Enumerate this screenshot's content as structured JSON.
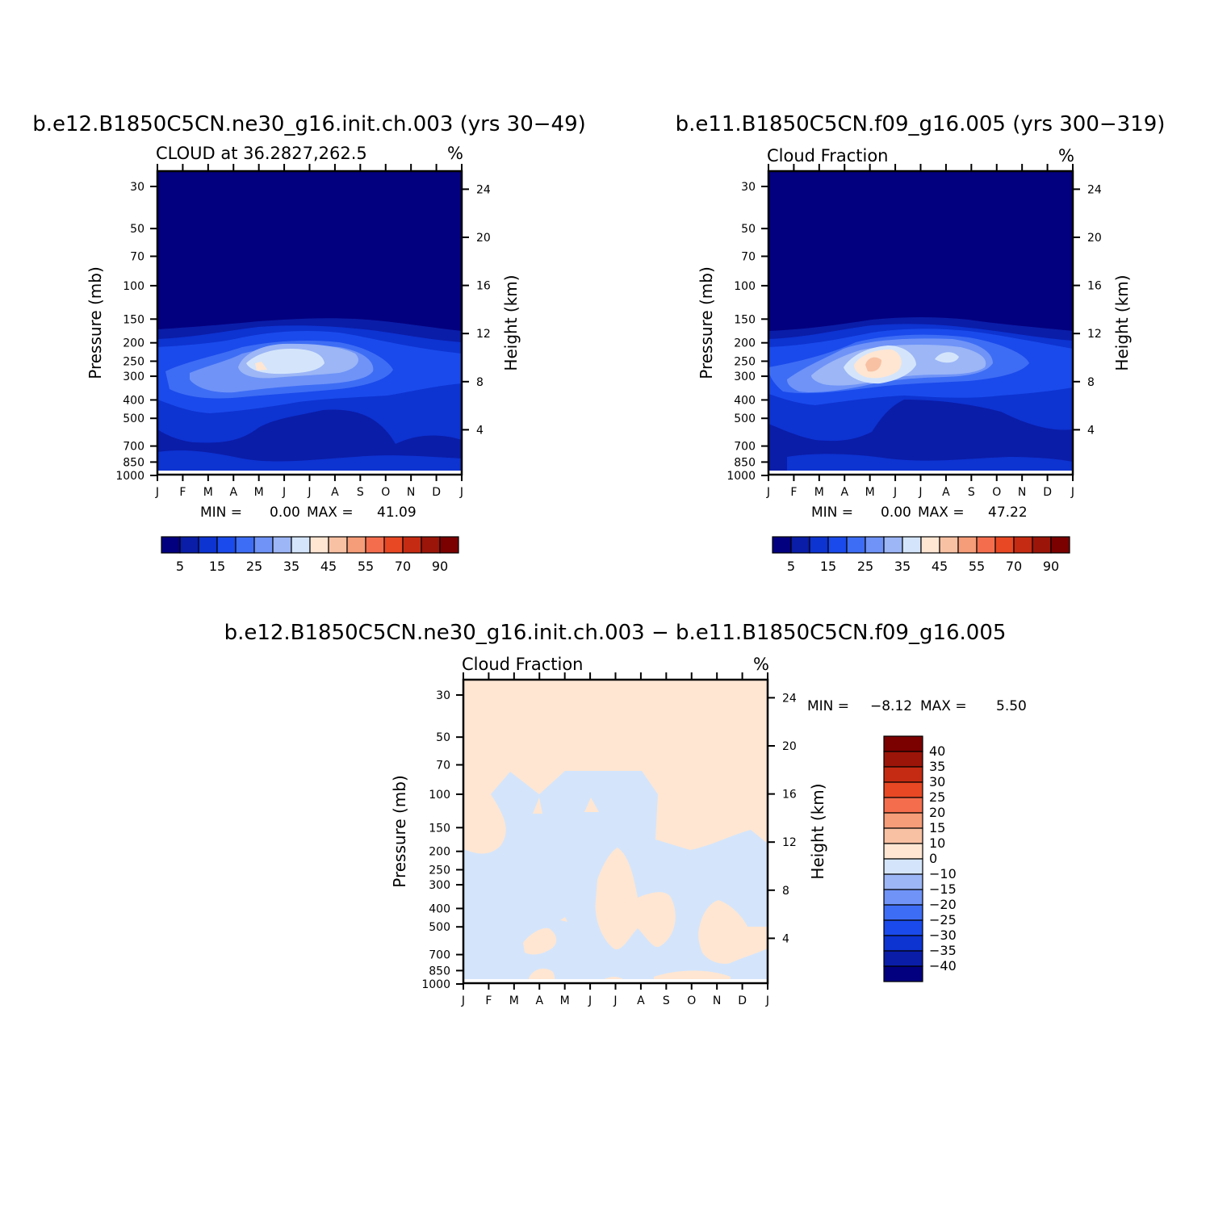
{
  "colors": {
    "abs": [
      "#03007f",
      "#0a1da8",
      "#0d33d1",
      "#1a4aeb",
      "#3e6df5",
      "#6f93f7",
      "#9cb6f6",
      "#d4e5fb",
      "#fee6d3",
      "#f8c1a3",
      "#f59c78",
      "#f46e4e",
      "#e84823",
      "#c52b12",
      "#9b1509",
      "#7b0000"
    ],
    "diff": [
      "#03007f",
      "#0a1da8",
      "#0d33d1",
      "#1a4aeb",
      "#3e6df5",
      "#6f93f7",
      "#9cb6f6",
      "#d4e5fb",
      "#fee6d3",
      "#f8c1a3",
      "#f59c78",
      "#f46e4e",
      "#e84823",
      "#c52b12",
      "#9b1509",
      "#7b0000"
    ]
  },
  "chart_data": [
    {
      "type": "heatmap",
      "panel": "top-left",
      "title": "b.e12.B1850C5CN.ne30_g16.init.ch.003 (yrs 30−49)",
      "subtitle": "CLOUD at 36.2827,262.5",
      "units": "%",
      "ylabel": "Pressure (mb)",
      "ylabel_right": "Height (km)",
      "x_ticks": [
        "J",
        "F",
        "M",
        "A",
        "M",
        "J",
        "J",
        "A",
        "S",
        "O",
        "N",
        "D",
        "J"
      ],
      "y_ticks": [
        30,
        50,
        70,
        100,
        150,
        200,
        250,
        300,
        400,
        500,
        700,
        850,
        1000
      ],
      "y_ticks_right": [
        24,
        20,
        16,
        12,
        8,
        4
      ],
      "y_scale": "log",
      "stats": {
        "min_label": "MIN =",
        "min": "0.00",
        "max_label": "MAX =",
        "max": "41.09"
      },
      "colorbar_labels": [
        "5",
        "15",
        "25",
        "35",
        "45",
        "55",
        "70",
        "90"
      ],
      "peak": {
        "month": "May–Jul",
        "pressure_mb": 260,
        "value": 41.09
      }
    },
    {
      "type": "heatmap",
      "panel": "top-right",
      "title": "b.e11.B1850C5CN.f09_g16.005 (yrs 300−319)",
      "subtitle": "Cloud Fraction",
      "units": "%",
      "ylabel": "Pressure (mb)",
      "ylabel_right": "Height (km)",
      "x_ticks": [
        "J",
        "F",
        "M",
        "A",
        "M",
        "J",
        "J",
        "A",
        "S",
        "O",
        "N",
        "D",
        "J"
      ],
      "y_ticks": [
        30,
        50,
        70,
        100,
        150,
        200,
        250,
        300,
        400,
        500,
        700,
        850,
        1000
      ],
      "y_ticks_right": [
        24,
        20,
        16,
        12,
        8,
        4
      ],
      "y_scale": "log",
      "stats": {
        "min_label": "MIN =",
        "min": "0.00",
        "max_label": "MAX =",
        "max": "47.22"
      },
      "colorbar_labels": [
        "5",
        "15",
        "25",
        "35",
        "45",
        "55",
        "70",
        "90"
      ],
      "peak": {
        "month": "May",
        "pressure_mb": 260,
        "value": 47.22
      }
    },
    {
      "type": "heatmap",
      "panel": "bottom",
      "title": "b.e12.B1850C5CN.ne30_g16.init.ch.003 − b.e11.B1850C5CN.f09_g16.005",
      "subtitle": "Cloud Fraction",
      "units": "%",
      "ylabel": "Pressure (mb)",
      "ylabel_right": "Height (km)",
      "x_ticks": [
        "J",
        "F",
        "M",
        "A",
        "M",
        "J",
        "J",
        "A",
        "S",
        "O",
        "N",
        "D",
        "J"
      ],
      "y_ticks": [
        30,
        50,
        70,
        100,
        150,
        200,
        250,
        300,
        400,
        500,
        700,
        850,
        1000
      ],
      "y_ticks_right": [
        24,
        20,
        16,
        12,
        8,
        4
      ],
      "y_scale": "log",
      "stats": {
        "min_label": "MIN =",
        "min": "−8.12",
        "max_label": "MAX =",
        "max": "5.50"
      },
      "colorbar_labels": [
        "40",
        "35",
        "30",
        "25",
        "20",
        "15",
        "10",
        "0",
        "−10",
        "−15",
        "−20",
        "−25",
        "−30",
        "−35",
        "−40"
      ]
    }
  ]
}
